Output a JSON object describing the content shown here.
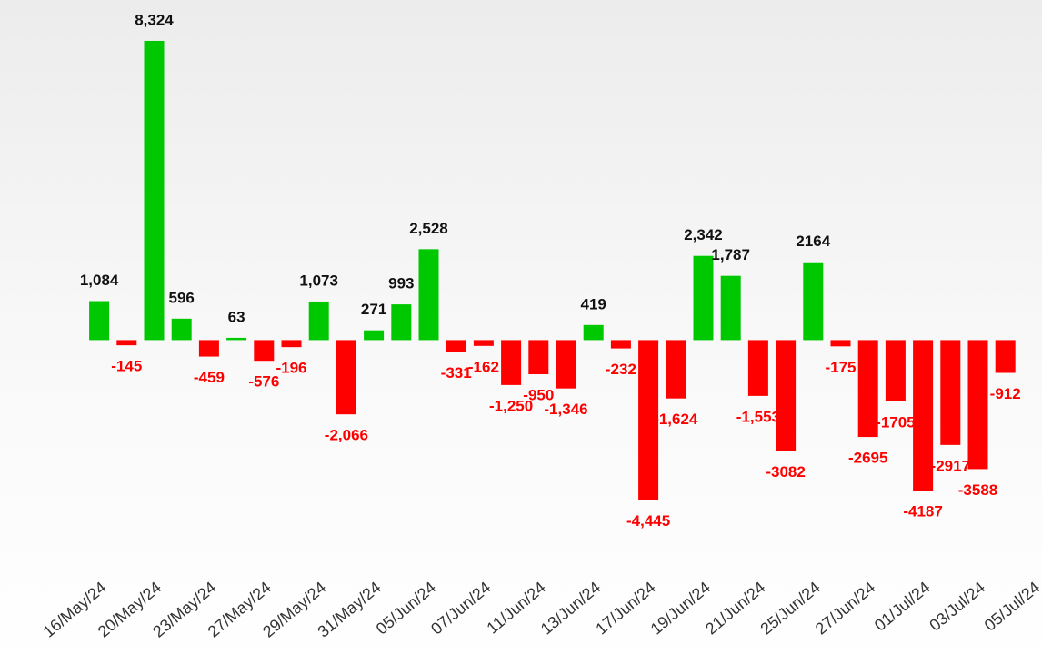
{
  "chart_data": {
    "type": "bar",
    "categories": [
      "16/May/24",
      null,
      "20/May/24",
      null,
      "23/May/24",
      null,
      "27/May/24",
      null,
      "29/May/24",
      null,
      "31/May/24",
      null,
      "05/Jun/24",
      null,
      "07/Jun/24",
      null,
      "11/Jun/24",
      null,
      "13/Jun/24",
      null,
      "17/Jun/24",
      null,
      "19/Jun/24",
      null,
      "21/Jun/24",
      null,
      "25/Jun/24",
      null,
      "27/Jun/24",
      null,
      "01/Jul/24",
      null,
      "03/Jul/24",
      null,
      "05/Jul/24"
    ],
    "values": [
      1084,
      -145,
      8324,
      596,
      -459,
      63,
      -576,
      -196,
      1073,
      -2066,
      271,
      993,
      2528,
      -331,
      -162,
      -1250,
      -950,
      -1346,
      419,
      -232,
      -4445,
      -1624,
      2342,
      1787,
      -1553,
      -3082,
      2164,
      -175,
      -2695,
      -1705,
      -4187,
      -2917,
      -3588,
      -912,
      null
    ],
    "value_labels": [
      "1,084",
      "-145",
      "8,324",
      "596",
      "-459",
      "63",
      "-576",
      "-196",
      "1,073",
      "-2,066",
      "271",
      "993",
      "2,528",
      "-331",
      "-162",
      "-1,250",
      "-950",
      "-1,346",
      "419",
      "-232",
      "-4,445",
      "-1,624",
      "2,342",
      "1,787",
      "-1,553",
      "-3082",
      "2164",
      "-175",
      "-2695",
      "-1705",
      "-4187",
      "-2917",
      "-3588",
      "-912",
      null
    ],
    "positive_color": "#00c800",
    "negative_color": "#ff0000",
    "ylim": [
      -5700,
      9460
    ]
  }
}
